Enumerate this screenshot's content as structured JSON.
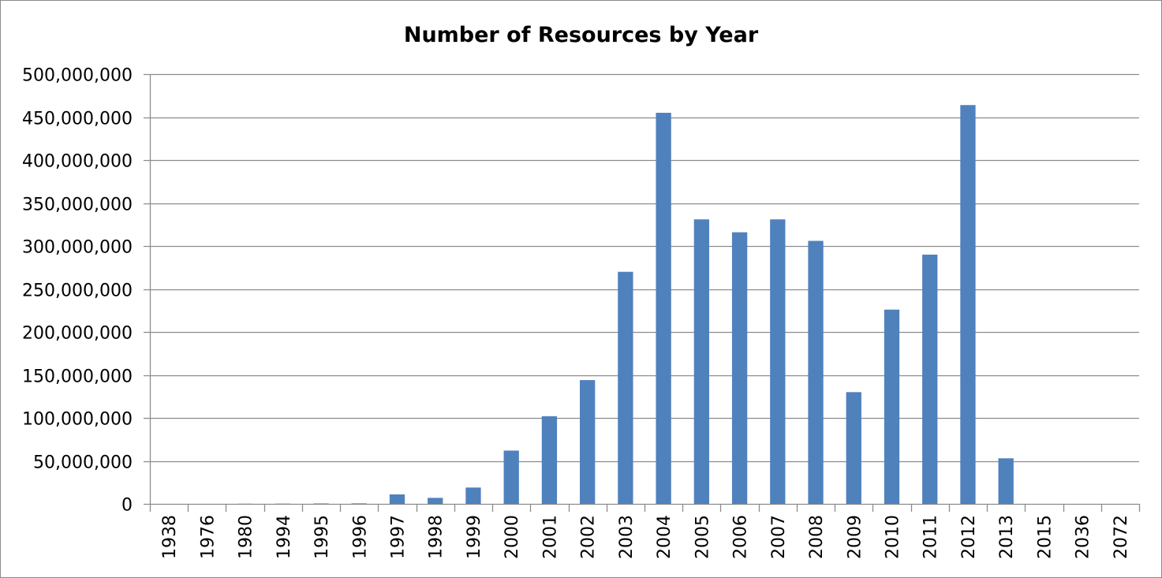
{
  "chart_data": {
    "type": "bar",
    "title": "Number of Resources by Year",
    "xlabel": "",
    "ylabel": "",
    "categories": [
      "1938",
      "1976",
      "1980",
      "1994",
      "1995",
      "1996",
      "1997",
      "1998",
      "1999",
      "2000",
      "2001",
      "2002",
      "2003",
      "2004",
      "2005",
      "2006",
      "2007",
      "2008",
      "2009",
      "2010",
      "2011",
      "2012",
      "2013",
      "2015",
      "2036",
      "2072"
    ],
    "values": [
      0,
      0,
      200000,
      300000,
      500000,
      600000,
      11000000,
      7000000,
      19000000,
      62000000,
      102000000,
      144000000,
      270000000,
      455000000,
      331000000,
      316000000,
      331000000,
      306000000,
      130000000,
      226000000,
      290000000,
      464000000,
      53000000,
      0,
      0,
      0
    ],
    "ylim": [
      0,
      500000000
    ],
    "yticks": [
      0,
      50000000,
      100000000,
      150000000,
      200000000,
      250000000,
      300000000,
      350000000,
      400000000,
      450000000,
      500000000
    ],
    "ytick_labels": [
      "0",
      "50,000,000",
      "100,000,000",
      "150,000,000",
      "200,000,000",
      "250,000,000",
      "300,000,000",
      "350,000,000",
      "400,000,000",
      "450,000,000",
      "500,000,000"
    ],
    "grid": true,
    "legend": "none",
    "bar_color": "#4f81bd",
    "grid_color": "#8c8c8c"
  }
}
